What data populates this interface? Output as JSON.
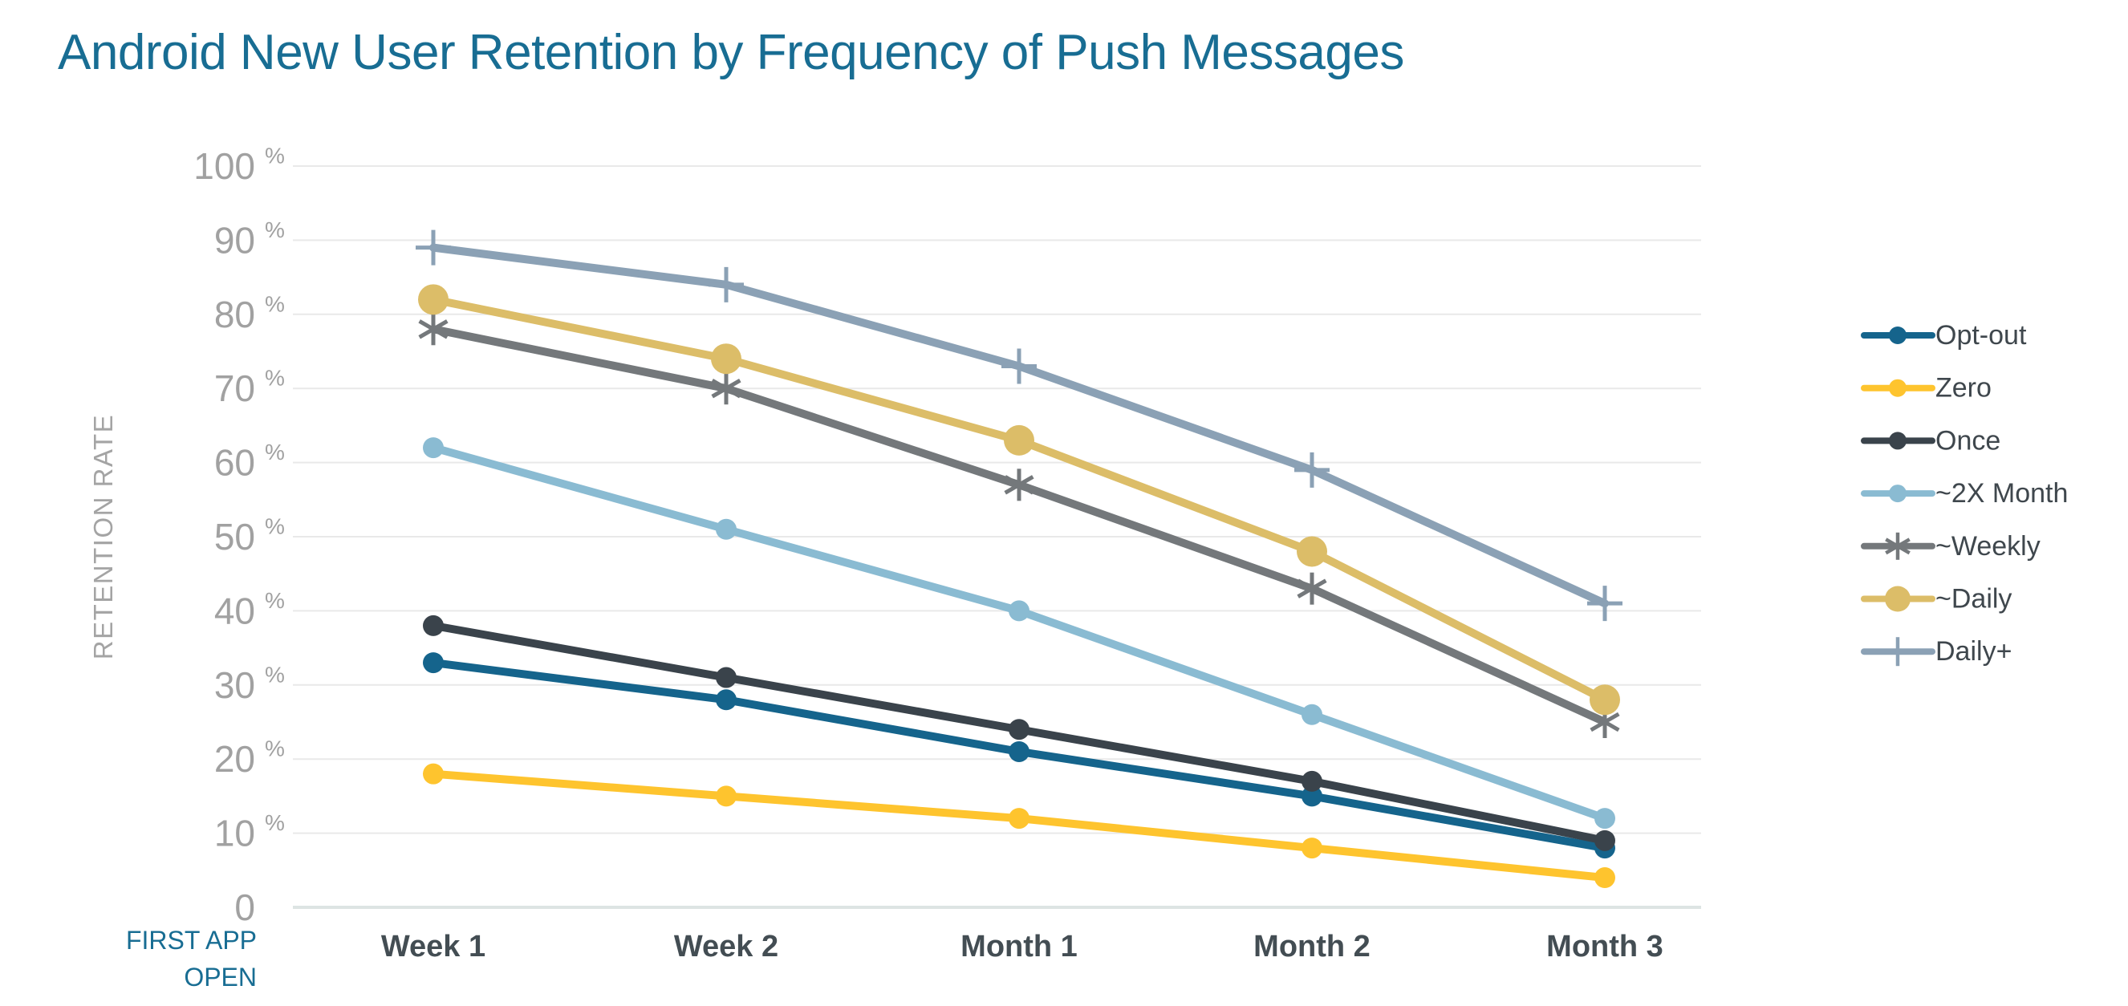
{
  "colors": {
    "background": "#ffffff",
    "title": "#186d93",
    "origin_label": "#186d93",
    "y_tick_text": "#a1a1a1",
    "y_axis_title": "#a4a4a4",
    "x_tick_text": "#434d53",
    "legend_text": "#3f474d",
    "gridline": "#e9e9e9",
    "axis_line": "#dde4e3"
  },
  "chart_data": {
    "type": "line",
    "title": "Android New User Retention by Frequency of Push Messages",
    "ylabel": "RETENTION RATE",
    "origin_label": {
      "line1": "FIRST APP",
      "line2": "OPEN"
    },
    "categories": [
      "Week 1",
      "Week 2",
      "Month 1",
      "Month 2",
      "Month 3"
    ],
    "y_ticks": [
      0,
      10,
      20,
      30,
      40,
      50,
      60,
      70,
      80,
      90,
      100
    ],
    "y_tick_suffix": "%",
    "ylim": [
      0,
      100
    ],
    "grid": "horizontal-only",
    "legend_position": "right",
    "series": [
      {
        "name": "Opt-out",
        "color": "#15648c",
        "marker": "circle",
        "values": [
          33,
          28,
          21,
          15,
          8
        ]
      },
      {
        "name": "Zero",
        "color": "#fec42e",
        "marker": "circle",
        "values": [
          18,
          15,
          12,
          8,
          4
        ]
      },
      {
        "name": "Once",
        "color": "#3a434b",
        "marker": "circle",
        "values": [
          38,
          31,
          24,
          17,
          9
        ]
      },
      {
        "name": "~2X Month",
        "color": "#8abbd2",
        "marker": "circle",
        "values": [
          62,
          51,
          40,
          26,
          12
        ]
      },
      {
        "name": "~Weekly",
        "color": "#74787b",
        "marker": "asterisk",
        "values": [
          78,
          70,
          57,
          43,
          25
        ]
      },
      {
        "name": "~Daily",
        "color": "#dcbd68",
        "marker": "circle-large",
        "values": [
          82,
          74,
          63,
          48,
          28
        ]
      },
      {
        "name": "Daily+",
        "color": "#8ba1b5",
        "marker": "plus",
        "values": [
          89,
          84,
          73,
          59,
          41
        ]
      }
    ]
  }
}
